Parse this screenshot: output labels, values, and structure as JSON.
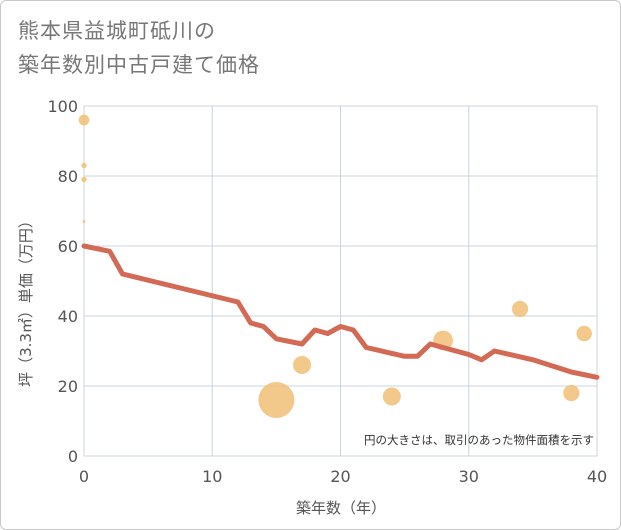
{
  "title_line1": "熊本県益城町砥川の",
  "title_line2": "築年数別中古戸建て価格",
  "chart_data": {
    "type": "scatter+line",
    "title": "熊本県益城町砥川の築年数別中古戸建て価格",
    "xlabel": "築年数（年）",
    "ylabel": "坪（3.3㎡）単価（万円）",
    "xlim": [
      0,
      40
    ],
    "ylim": [
      0,
      100
    ],
    "xticks": [
      0,
      10,
      20,
      30,
      40
    ],
    "yticks": [
      0,
      20,
      40,
      60,
      80,
      100
    ],
    "grid": true,
    "note": "円の大きさは、取引のあった物件面積を示す",
    "bubbles": [
      {
        "x": 0,
        "y": 96,
        "size": 3
      },
      {
        "x": 0,
        "y": 83,
        "size": 1.5
      },
      {
        "x": 0,
        "y": 79,
        "size": 1.5
      },
      {
        "x": 0,
        "y": 67,
        "size": 0.8
      },
      {
        "x": 15,
        "y": 16,
        "size": 10
      },
      {
        "x": 17,
        "y": 26,
        "size": 5
      },
      {
        "x": 24,
        "y": 17,
        "size": 5
      },
      {
        "x": 28,
        "y": 33,
        "size": 5.5
      },
      {
        "x": 34,
        "y": 42,
        "size": 4.5
      },
      {
        "x": 38,
        "y": 18,
        "size": 4.5
      },
      {
        "x": 39,
        "y": 35,
        "size": 4.3
      }
    ],
    "trend": {
      "x": [
        0,
        2,
        3,
        12,
        13,
        14,
        15,
        17,
        18,
        19,
        20,
        21,
        22,
        25,
        26,
        27,
        28,
        30,
        31,
        32,
        35,
        38,
        40
      ],
      "y": [
        60,
        58.5,
        52,
        44,
        38,
        37,
        33.5,
        32,
        36,
        35,
        37,
        36,
        31,
        28.5,
        28.5,
        32,
        31,
        29,
        27.5,
        30,
        27.5,
        24,
        22.5
      ]
    },
    "colors": {
      "bubble": "#f0c27a",
      "trend": "#d26a55",
      "grid": "#c8d6e0",
      "axis_text": "#555555"
    }
  }
}
